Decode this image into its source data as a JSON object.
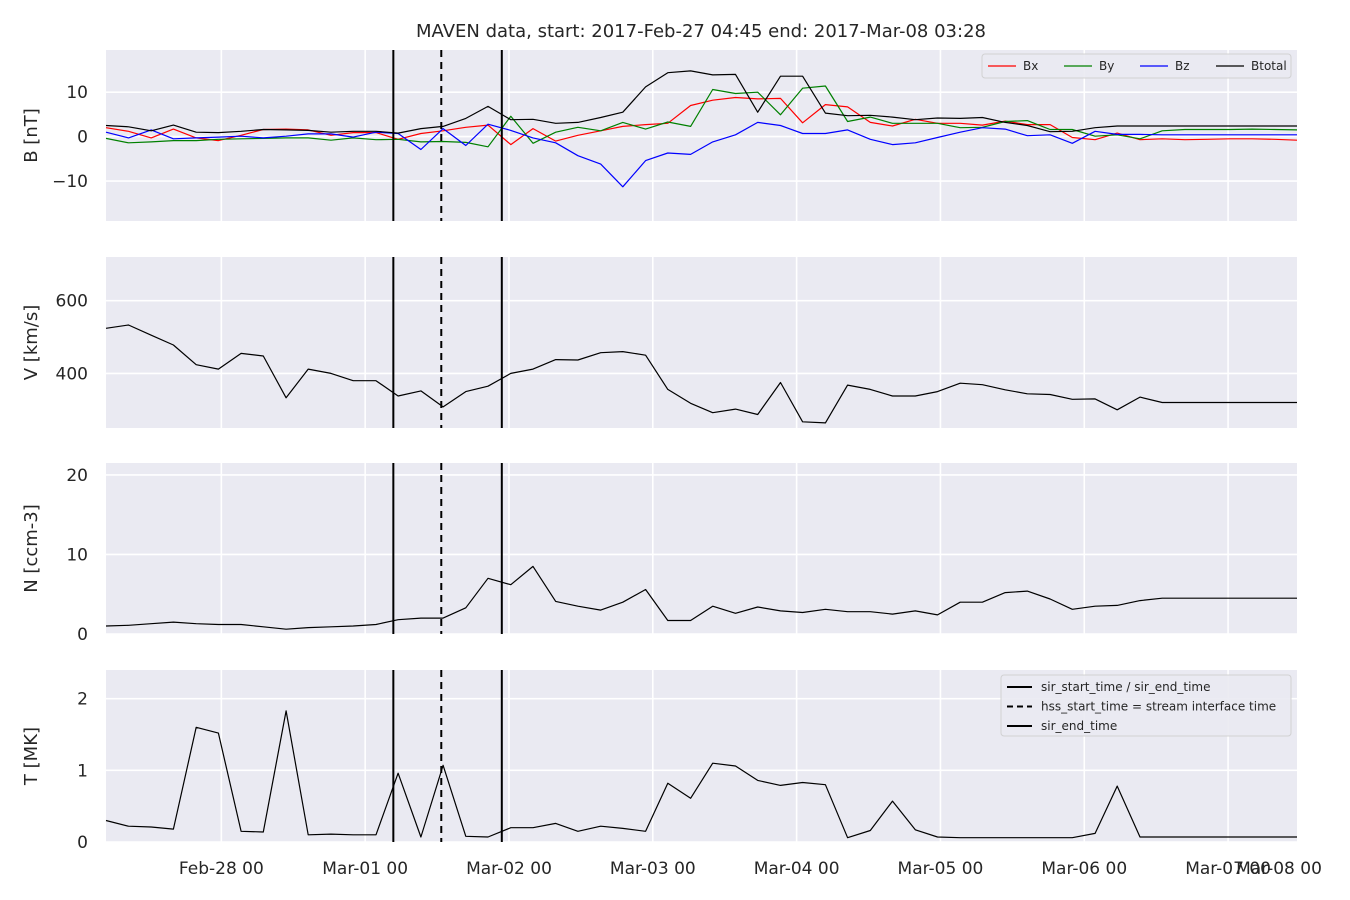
{
  "title": "MAVEN data, start: 2017-Feb-27 04:45  end: 2017-Mar-08 03:28",
  "x_tick_labels": [
    "Feb-28 00",
    "Mar-01 00",
    "Mar-02 00",
    "Mar-03 00",
    "Mar-04 00",
    "Mar-05 00",
    "Mar-06 00",
    "Mar-07 00",
    "Mar-08 00"
  ],
  "event_lines": {
    "sir_start_hours": 52.7,
    "hss_start_hours": 60.7,
    "sir_end_hours": 70.8,
    "legend": [
      {
        "label": "sir_start_time / sir_end_time",
        "style": "solid"
      },
      {
        "label": "hss_start_time = stream interface time",
        "style": "dashed"
      },
      {
        "label": "sir_end_time",
        "style": "solid"
      }
    ]
  },
  "chart_data": [
    {
      "type": "line",
      "ylabel": "B [nT]",
      "ylim": [
        -19,
        19.5
      ],
      "yticks": [
        -10,
        0,
        10
      ],
      "x_hours_from_feb27_00": [
        4.75,
        8.5,
        12.3,
        16,
        19.8,
        23.5,
        27.3,
        31,
        34.8,
        38.5,
        42.3,
        46,
        49.8,
        53.5,
        57.3,
        61,
        64.8,
        68.5,
        72.3,
        76,
        79.8,
        83.5,
        87.3,
        91,
        94.8,
        98.5,
        102.3,
        106,
        109.8,
        113.5,
        117.3,
        121,
        124.8,
        128.5,
        132.3,
        136,
        139.8,
        143.5,
        147.3,
        151,
        154.8,
        158.5,
        162.3,
        166,
        169.8,
        173.5,
        177.3,
        181,
        184.8,
        188.5,
        192.3,
        196,
        199.8,
        203.5
      ],
      "series": [
        {
          "name": "Bx",
          "color": "#ff0000",
          "values": [
            2.0,
            1.2,
            -0.3,
            1.7,
            -0.3,
            -0.9,
            0.3,
            1.6,
            1.7,
            1.5,
            0.3,
            0.9,
            0.9,
            -0.6,
            0.7,
            1.3,
            2.1,
            2.6,
            -1.8,
            1.8,
            -1.0,
            0.3,
            1.3,
            2.3,
            2.7,
            3.0,
            7.0,
            8.2,
            8.8,
            8.5,
            8.6,
            3.1,
            7.2,
            6.7,
            3.2,
            2.4,
            3.9,
            3.0,
            3.0,
            2.6,
            3.5,
            2.7,
            2.7,
            -0.2,
            -0.7,
            0.8,
            -0.7,
            -0.5,
            -0.7,
            -0.6,
            -0.5,
            -0.5,
            -0.6,
            -0.8
          ]
        },
        {
          "name": "By",
          "color": "#008000",
          "values": [
            -0.4,
            -1.4,
            -1.2,
            -0.9,
            -0.9,
            -0.6,
            -0.5,
            -0.4,
            -0.3,
            -0.3,
            -0.8,
            -0.3,
            -0.7,
            -0.6,
            -1.2,
            -1.1,
            -1.3,
            -2.3,
            4.6,
            -1.5,
            1.0,
            2.1,
            1.3,
            3.2,
            1.7,
            3.3,
            2.3,
            10.6,
            9.7,
            10.0,
            4.9,
            10.9,
            11.4,
            3.4,
            4.4,
            3.0,
            3.0,
            3.0,
            2.0,
            2.1,
            3.4,
            3.6,
            1.6,
            1.6,
            0.1,
            0.4,
            -0.5,
            1.3,
            1.6,
            1.6,
            1.6,
            1.7,
            1.6,
            1.5
          ]
        },
        {
          "name": "Bz",
          "color": "#0000ff",
          "values": [
            1.0,
            -0.3,
            1.5,
            -0.5,
            -0.3,
            -0.1,
            0.1,
            -0.3,
            0.1,
            0.6,
            0.6,
            -0.1,
            1.0,
            0.7,
            -2.9,
            1.8,
            -2.0,
            2.8,
            1.4,
            -0.3,
            -1.4,
            -4.3,
            -6.2,
            -11.3,
            -5.4,
            -3.7,
            -4.0,
            -1.2,
            0.4,
            3.2,
            2.5,
            0.7,
            0.7,
            1.5,
            -0.6,
            -1.8,
            -1.4,
            -0.2,
            1.0,
            2.0,
            1.7,
            0.2,
            0.4,
            -1.5,
            1.2,
            0.5,
            0.5,
            0.4,
            0.4,
            0.4,
            0.4,
            0.4,
            0.4,
            0.4
          ]
        },
        {
          "name": "Btotal",
          "color": "#000000",
          "values": [
            2.5,
            2.2,
            1.3,
            2.6,
            1.0,
            0.9,
            1.2,
            1.6,
            1.5,
            1.4,
            1.0,
            1.2,
            1.2,
            0.8,
            1.8,
            2.3,
            4.1,
            6.8,
            3.8,
            3.9,
            3.0,
            3.2,
            4.3,
            5.5,
            11.2,
            14.4,
            14.8,
            13.9,
            14.0,
            5.5,
            13.6,
            13.6,
            5.3,
            4.7,
            4.8,
            4.4,
            3.8,
            4.2,
            4.1,
            4.3,
            3.2,
            2.5,
            1.1,
            1.2,
            2.0,
            2.4,
            2.4,
            2.4,
            2.4,
            2.4,
            2.4,
            2.4,
            2.4,
            2.4
          ]
        }
      ]
    },
    {
      "type": "line",
      "ylabel": "V [km/s]",
      "ylim": [
        250,
        720
      ],
      "yticks": [
        400,
        600
      ],
      "series": [
        {
          "color": "#000000",
          "x_hours_from_feb27_00": [
            4.75,
            8.5,
            12.3,
            16,
            19.8,
            23.5,
            27.3,
            31,
            34.8,
            38.5,
            42.3,
            46,
            49.8,
            53.5,
            57.3,
            61,
            64.8,
            68.5,
            72.3,
            76,
            79.8,
            83.5,
            87.3,
            91,
            94.8,
            98.5,
            102.3,
            106,
            109.8,
            113.5,
            117.3,
            121,
            124.8,
            128.5,
            132.3,
            136,
            139.8,
            143.5,
            147.3,
            151,
            154.8,
            158.5,
            162.3,
            166,
            169.8,
            173.5,
            177.3,
            181,
            184.8,
            188.5,
            192.3,
            196,
            199.8,
            203.5
          ],
          "values": [
            524,
            533,
            505,
            478,
            424,
            412,
            455,
            448,
            333,
            412,
            400,
            380,
            380,
            338,
            352,
            308,
            350,
            365,
            400,
            412,
            438,
            437,
            457,
            460,
            450,
            356,
            318,
            292,
            302,
            287,
            375,
            267,
            264,
            368,
            356,
            338,
            338,
            350,
            373,
            369,
            355,
            344,
            342,
            329,
            330,
            300,
            335,
            320,
            320,
            320,
            320,
            320,
            320,
            320
          ]
        }
      ]
    },
    {
      "type": "line",
      "ylabel": "N [ccm-3]",
      "ylim": [
        0,
        21.5
      ],
      "yticks": [
        0,
        10,
        20
      ],
      "series": [
        {
          "color": "#000000",
          "x_hours_from_feb27_00": [
            4.75,
            8.5,
            12.3,
            16,
            19.8,
            23.5,
            27.3,
            31,
            34.8,
            38.5,
            42.3,
            46,
            49.8,
            53.5,
            57.3,
            61,
            64.8,
            68.5,
            72.3,
            76,
            79.8,
            83.5,
            87.3,
            91,
            94.8,
            98.5,
            102.3,
            106,
            109.8,
            113.5,
            117.3,
            121,
            124.8,
            128.5,
            132.3,
            136,
            139.8,
            143.5,
            147.3,
            151,
            154.8,
            158.5,
            162.3,
            166,
            169.8,
            173.5,
            177.3,
            181,
            184.8,
            188.5,
            192.3,
            196,
            199.8,
            203.5
          ],
          "values": [
            1.0,
            1.1,
            1.3,
            1.5,
            1.3,
            1.2,
            1.2,
            0.9,
            0.6,
            0.8,
            0.9,
            1.0,
            1.2,
            1.8,
            2.0,
            2.0,
            3.3,
            7.0,
            6.2,
            8.5,
            4.1,
            3.5,
            3.0,
            4.0,
            5.6,
            1.7,
            1.7,
            3.5,
            2.6,
            3.4,
            2.9,
            2.7,
            3.1,
            2.8,
            2.8,
            2.5,
            2.9,
            2.4,
            4.0,
            4.0,
            5.2,
            5.4,
            4.4,
            3.1,
            3.5,
            3.6,
            4.2,
            4.5,
            4.5,
            4.5,
            4.5,
            4.5,
            4.5,
            4.5
          ]
        }
      ]
    },
    {
      "type": "line",
      "ylabel": "T [MK]",
      "ylim": [
        0,
        2.4
      ],
      "yticks": [
        0,
        1,
        2
      ],
      "series": [
        {
          "color": "#000000",
          "x_hours_from_feb27_00": [
            4.75,
            8.5,
            12.3,
            16,
            19.8,
            23.5,
            27.3,
            31,
            34.8,
            38.5,
            42.3,
            46,
            49.8,
            53.5,
            57.3,
            61,
            64.8,
            68.5,
            72.3,
            76,
            79.8,
            83.5,
            87.3,
            91,
            94.8,
            98.5,
            102.3,
            106,
            109.8,
            113.5,
            117.3,
            121,
            124.8,
            128.5,
            132.3,
            136,
            139.8,
            143.5,
            147.3,
            151,
            154.8,
            158.5,
            162.3,
            166,
            169.8,
            173.5,
            177.3,
            181,
            184.8,
            188.5,
            192.3,
            196,
            199.8,
            203.5
          ],
          "values": [
            0.3,
            0.22,
            0.21,
            0.18,
            1.6,
            1.52,
            0.15,
            0.14,
            1.83,
            0.1,
            0.11,
            0.1,
            0.1,
            0.96,
            0.07,
            1.07,
            0.08,
            0.07,
            0.2,
            0.2,
            0.26,
            0.15,
            0.22,
            0.19,
            0.15,
            0.82,
            0.61,
            1.1,
            1.06,
            0.86,
            0.79,
            0.83,
            0.8,
            0.06,
            0.16,
            0.57,
            0.17,
            0.07,
            0.06,
            0.06,
            0.06,
            0.06,
            0.06,
            0.06,
            0.12,
            0.78,
            0.07,
            0.07,
            0.07,
            0.07,
            0.07,
            0.07,
            0.07,
            0.07
          ]
        }
      ]
    }
  ],
  "b_legend": [
    {
      "name": "Bx",
      "color": "#ff0000"
    },
    {
      "name": "By",
      "color": "#008000"
    },
    {
      "name": "Bz",
      "color": "#0000ff"
    },
    {
      "name": "Btotal",
      "color": "#000000"
    }
  ]
}
